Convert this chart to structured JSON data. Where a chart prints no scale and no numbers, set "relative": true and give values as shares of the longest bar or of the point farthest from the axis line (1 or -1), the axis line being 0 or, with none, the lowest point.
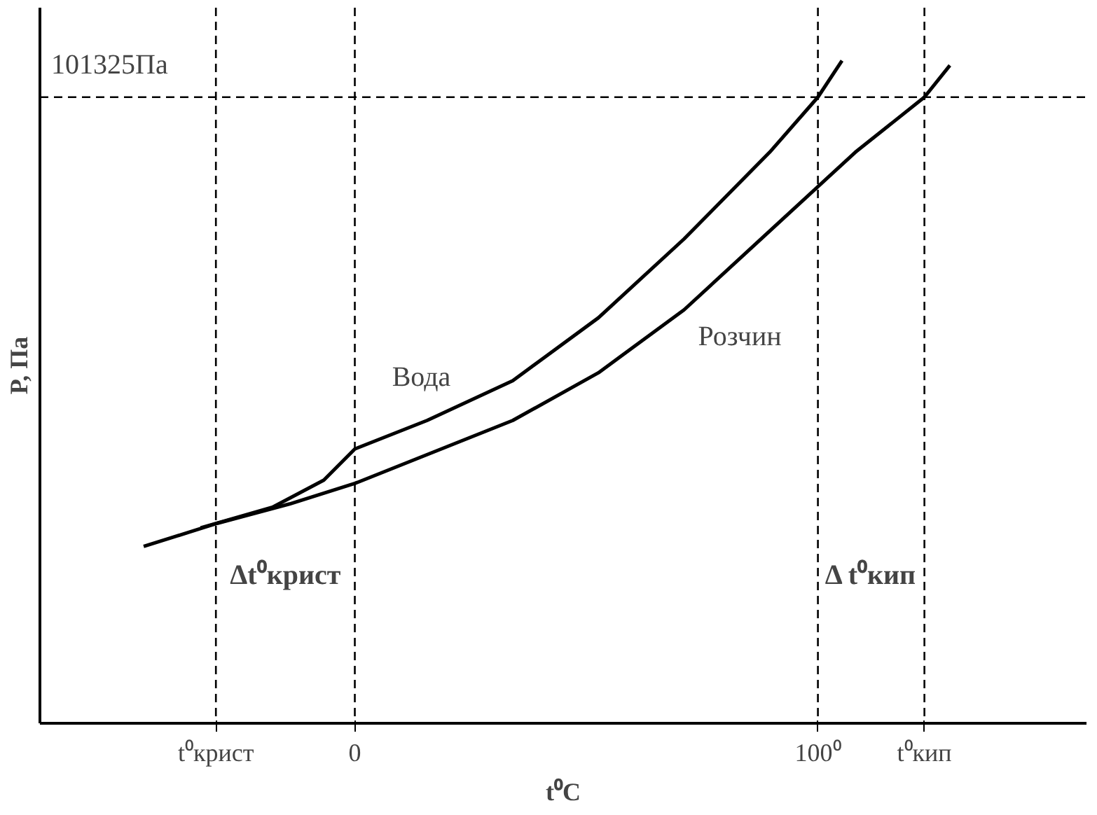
{
  "chart_data": {
    "type": "line",
    "relative": true,
    "xlabel": "t⁰C",
    "ylabel": "P, Па",
    "xlim": [
      -68,
      158
    ],
    "xticks": [
      {
        "value": -30,
        "label": "t⁰крист"
      },
      0,
      {
        "value": 100,
        "label": "100⁰"
      },
      {
        "value": 123,
        "label": "t⁰кип"
      }
    ],
    "series": [
      {
        "name": "Вода",
        "color": "#000000",
        "x": [
          -33.3,
          -17.8,
          -6.7,
          0,
          15.6,
          34.1,
          52.6,
          71.1,
          89.6,
          100,
          105.2
        ],
        "values": [
          0.295,
          0.326,
          0.367,
          0.414,
          0.457,
          0.517,
          0.612,
          0.731,
          0.862,
          0.945,
          1.0
        ]
      },
      {
        "name": "Розчин",
        "color": "#000000",
        "x": [
          -45.6,
          -29.6,
          -14.1,
          0,
          34.1,
          52.6,
          71.1,
          89.6,
          108.1,
          123,
          128.5
        ],
        "values": [
          0.267,
          0.302,
          0.331,
          0.362,
          0.457,
          0.529,
          0.624,
          0.743,
          0.862,
          0.945,
          0.993
        ]
      }
    ],
    "ref_lines": [
      {
        "axis": "y",
        "value": 0.945,
        "label": "101325Па",
        "line_style": "dashed"
      },
      {
        "axis": "x",
        "value": -30,
        "line_style": "dashed"
      },
      {
        "axis": "x",
        "value": 0,
        "line_style": "dashed"
      },
      {
        "axis": "x",
        "value": 100,
        "line_style": "dashed"
      },
      {
        "axis": "x",
        "value": 123,
        "line_style": "dashed"
      }
    ],
    "annotations": [
      "Δt⁰крист",
      "Δ t⁰кип"
    ],
    "grid": false,
    "legend": false,
    "marker": "none",
    "line_style": "solid"
  }
}
